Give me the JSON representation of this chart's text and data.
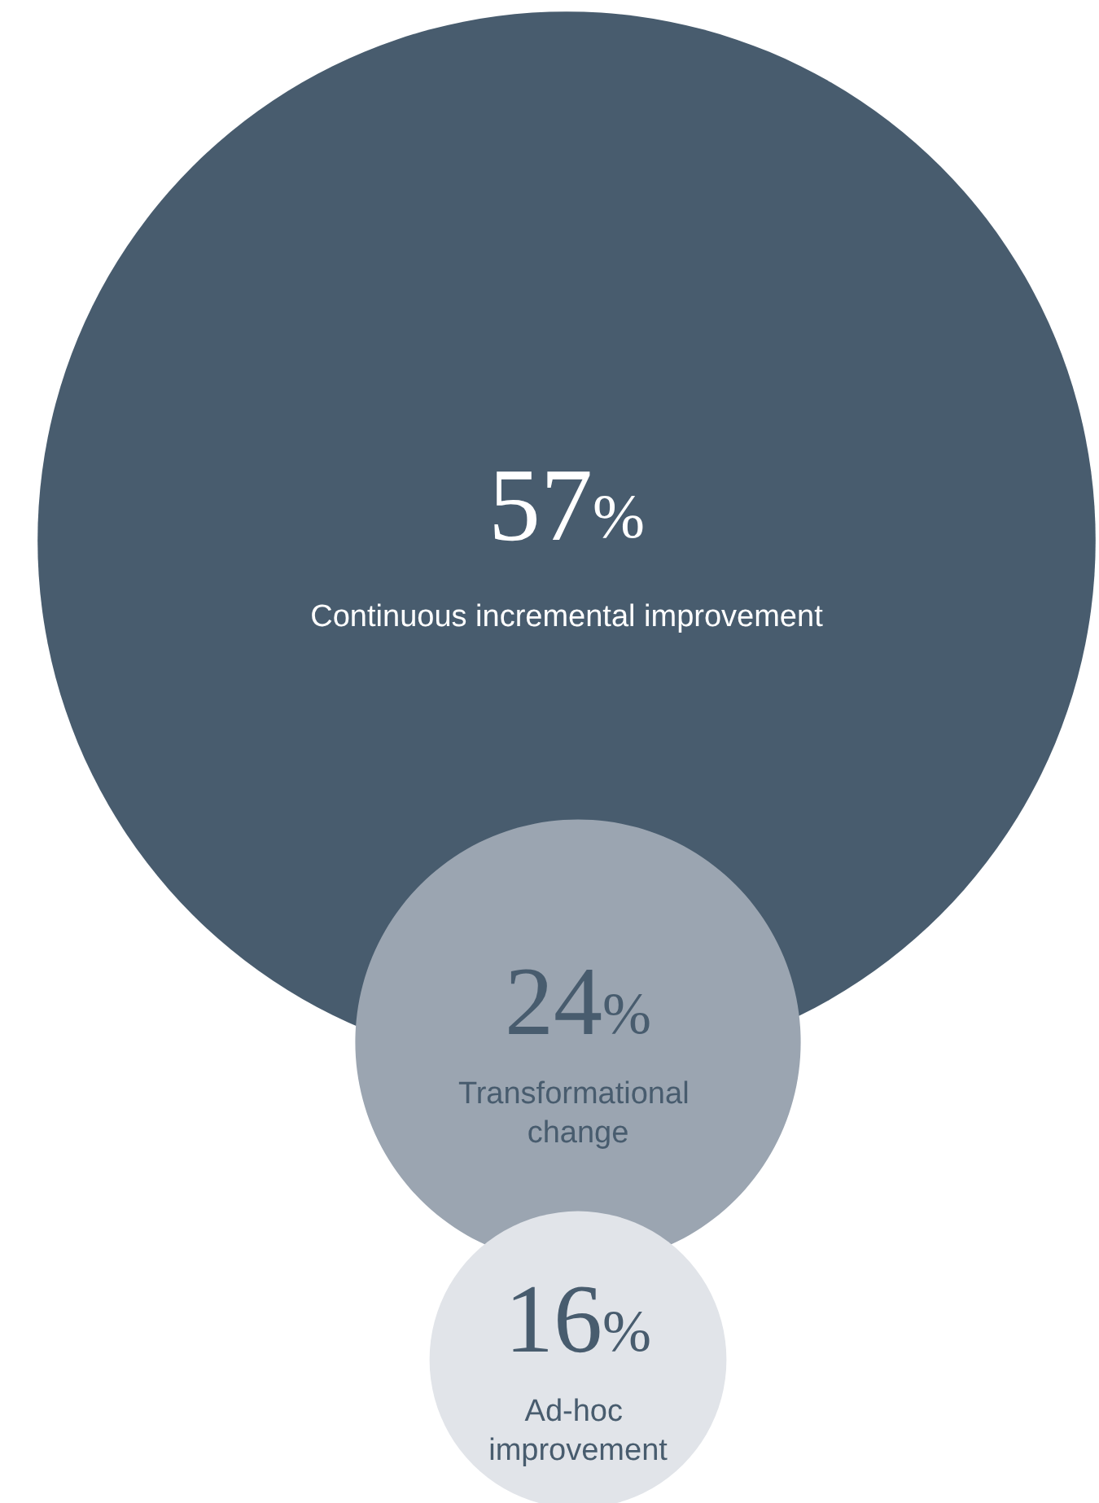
{
  "chart_data": {
    "type": "other",
    "categories": [
      "Continuous incremental improvement",
      "Transformational change",
      "Ad-hoc improvement"
    ],
    "values": [
      57,
      24,
      16
    ],
    "value_labels": [
      "57%",
      "24%",
      "16%"
    ],
    "colors": [
      "#485c6e",
      "#9ba5b1",
      "#e1e4e9"
    ]
  }
}
